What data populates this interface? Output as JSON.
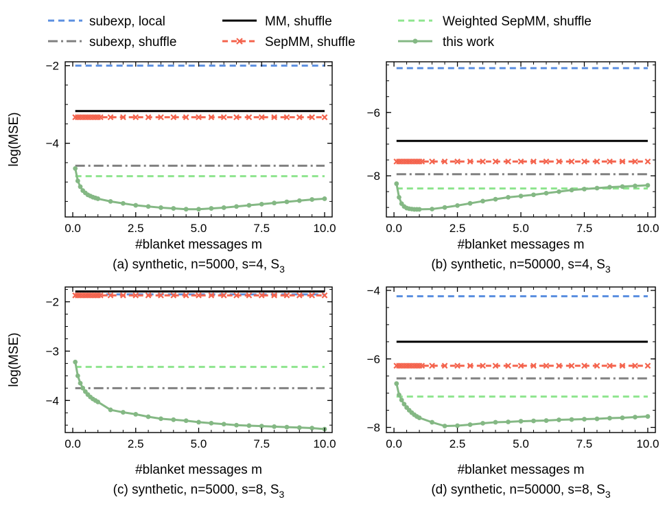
{
  "legend": [
    {
      "key": "subexp_local",
      "label": "subexp, local"
    },
    {
      "key": "subexp_shuffle",
      "label": "subexp, shuffle"
    },
    {
      "key": "mm_shuffle",
      "label": "MM, shuffle"
    },
    {
      "key": "sepmm_shuffle",
      "label": "SepMM, shuffle"
    },
    {
      "key": "weighted_sepmm_shuffle",
      "label": "Weighted SepMM, shuffle"
    },
    {
      "key": "this_work",
      "label": "this work"
    }
  ],
  "series_style": {
    "subexp_local": {
      "color": "#5b8fe0",
      "dash": "9,6",
      "marker": "none"
    },
    "subexp_shuffle": {
      "color": "#808080",
      "dash": "14,5,3,5",
      "marker": "none"
    },
    "mm_shuffle": {
      "color": "#000000",
      "dash": "",
      "marker": "none"
    },
    "sepmm_shuffle": {
      "color": "#f4644e",
      "dash": "8,5",
      "marker": "x"
    },
    "weighted_sepmm_shuffle": {
      "color": "#8ee58e",
      "dash": "9,6",
      "marker": "none"
    },
    "this_work": {
      "color": "#84b884",
      "dash": "",
      "marker": "dot"
    }
  },
  "chart_data": [
    {
      "type": "line",
      "panel": "a",
      "caption": "(a) synthetic, n=5000, s=4, S",
      "caption_sub": "3",
      "xlabel": "#blanket messages m",
      "ylabel": "log(MSE)",
      "xlim": [
        -0.3,
        10.3
      ],
      "ylim": [
        -5.9,
        -1.9
      ],
      "xticks": [
        0.0,
        2.5,
        5.0,
        7.5,
        10.0
      ],
      "xtick_labels": [
        "0.0",
        "2.5",
        "5.0",
        "7.5",
        "10.0"
      ],
      "yticks": [
        -2,
        -4
      ],
      "ytick_labels": [
        "−2",
        "−4"
      ],
      "hlines": {
        "subexp_local": -2.0,
        "mm_shuffle": -3.17,
        "sepmm_shuffle": -3.33,
        "subexp_shuffle": -4.58,
        "weighted_sepmm_shuffle": -4.85
      },
      "sepmm_markers": {
        "dense_from": 0.1,
        "dense_to": 1.1,
        "dense_step": 0.1,
        "sparse_from": 1.5,
        "sparse_to": 10.0,
        "sparse_step": 0.5
      },
      "this_work": {
        "x": [
          0.1,
          0.2,
          0.3,
          0.4,
          0.5,
          0.6,
          0.7,
          0.8,
          0.9,
          1.0,
          1.5,
          2.0,
          2.5,
          3.0,
          3.5,
          4.0,
          4.5,
          5.0,
          5.5,
          6.0,
          6.5,
          7.0,
          7.5,
          8.0,
          8.5,
          9.0,
          9.5,
          10.0
        ],
        "y": [
          -4.65,
          -4.97,
          -5.12,
          -5.22,
          -5.28,
          -5.33,
          -5.36,
          -5.39,
          -5.41,
          -5.43,
          -5.5,
          -5.55,
          -5.6,
          -5.63,
          -5.66,
          -5.68,
          -5.7,
          -5.7,
          -5.68,
          -5.66,
          -5.63,
          -5.6,
          -5.57,
          -5.54,
          -5.51,
          -5.48,
          -5.45,
          -5.43
        ]
      }
    },
    {
      "type": "line",
      "panel": "b",
      "caption": "(b) synthetic, n=50000, s=4, S",
      "caption_sub": "3",
      "xlabel": "#blanket messages m",
      "ylabel": "",
      "xlim": [
        -0.3,
        10.3
      ],
      "ylim": [
        -9.3,
        -4.4
      ],
      "xticks": [
        0.0,
        2.5,
        5.0,
        7.5,
        10.0
      ],
      "xtick_labels": [
        "0.0",
        "2.5",
        "5.0",
        "7.5",
        "10.0"
      ],
      "yticks": [
        -6,
        -8
      ],
      "ytick_labels": [
        "−6",
        "−8"
      ],
      "hlines": {
        "subexp_local": -4.6,
        "mm_shuffle": -6.9,
        "sepmm_shuffle": -7.55,
        "subexp_shuffle": -7.95,
        "weighted_sepmm_shuffle": -8.4
      },
      "sepmm_markers": {
        "dense_from": 0.1,
        "dense_to": 1.1,
        "dense_step": 0.1,
        "sparse_from": 1.5,
        "sparse_to": 10.0,
        "sparse_step": 0.5
      },
      "this_work": {
        "x": [
          0.1,
          0.2,
          0.3,
          0.4,
          0.5,
          0.6,
          0.7,
          0.8,
          0.9,
          1.0,
          1.5,
          2.0,
          2.5,
          3.0,
          3.5,
          4.0,
          4.5,
          5.0,
          5.5,
          6.0,
          6.5,
          7.0,
          7.5,
          8.0,
          8.5,
          9.0,
          9.5,
          10.0
        ],
        "y": [
          -8.25,
          -8.68,
          -8.88,
          -8.97,
          -9.02,
          -9.04,
          -9.05,
          -9.06,
          -9.06,
          -9.06,
          -9.05,
          -9.0,
          -8.94,
          -8.87,
          -8.8,
          -8.74,
          -8.68,
          -8.64,
          -8.6,
          -8.55,
          -8.5,
          -8.45,
          -8.42,
          -8.39,
          -8.36,
          -8.34,
          -8.32,
          -8.3
        ]
      }
    },
    {
      "type": "line",
      "panel": "c",
      "caption": "(c) synthetic, n=5000, s=8, S",
      "caption_sub": "3",
      "xlabel": "#blanket messages m",
      "ylabel": "log(MSE)",
      "xlim": [
        -0.3,
        10.3
      ],
      "ylim": [
        -4.65,
        -1.7
      ],
      "xticks": [
        0.0,
        2.5,
        5.0,
        7.5,
        10.0
      ],
      "xtick_labels": [
        "0.0",
        "2.5",
        "5.0",
        "7.5",
        "10.0"
      ],
      "yticks": [
        -2,
        -3,
        -4
      ],
      "ytick_labels": [
        "−2",
        "−3",
        "−4"
      ],
      "hlines": {
        "mm_shuffle": -1.79,
        "subexp_local": -1.85,
        "sepmm_shuffle": -1.87,
        "weighted_sepmm_shuffle": -3.32,
        "subexp_shuffle": -3.75
      },
      "sepmm_markers": {
        "dense_from": 0.1,
        "dense_to": 1.1,
        "dense_step": 0.1,
        "sparse_from": 1.5,
        "sparse_to": 10.0,
        "sparse_step": 0.5
      },
      "this_work": {
        "x": [
          0.1,
          0.2,
          0.3,
          0.4,
          0.5,
          0.6,
          0.7,
          0.8,
          0.9,
          1.0,
          1.5,
          2.0,
          2.5,
          3.0,
          3.5,
          4.0,
          4.5,
          5.0,
          5.5,
          6.0,
          6.5,
          7.0,
          7.5,
          8.0,
          8.5,
          9.0,
          9.5,
          10.0
        ],
        "y": [
          -3.22,
          -3.5,
          -3.65,
          -3.75,
          -3.82,
          -3.88,
          -3.93,
          -3.97,
          -4.0,
          -4.03,
          -4.19,
          -4.24,
          -4.28,
          -4.33,
          -4.37,
          -4.39,
          -4.41,
          -4.44,
          -4.46,
          -4.48,
          -4.5,
          -4.51,
          -4.52,
          -4.53,
          -4.54,
          -4.55,
          -4.56,
          -4.58
        ]
      }
    },
    {
      "type": "line",
      "panel": "d",
      "caption": "(d) synthetic, n=50000, s=8, S",
      "caption_sub": "3",
      "xlabel": "#blanket messages m",
      "ylabel": "",
      "xlim": [
        -0.3,
        10.3
      ],
      "ylim": [
        -8.15,
        -3.9
      ],
      "xticks": [
        0.0,
        2.5,
        5.0,
        7.5,
        10.0
      ],
      "xtick_labels": [
        "0.0",
        "2.5",
        "5.0",
        "7.5",
        "10.0"
      ],
      "yticks": [
        -4,
        -6,
        -8
      ],
      "ytick_labels": [
        "−4",
        "−6",
        "−8"
      ],
      "hlines": {
        "subexp_local": -4.17,
        "mm_shuffle": -5.5,
        "sepmm_shuffle": -6.2,
        "subexp_shuffle": -6.57,
        "weighted_sepmm_shuffle": -7.1
      },
      "sepmm_markers": {
        "dense_from": 0.1,
        "dense_to": 1.1,
        "dense_step": 0.1,
        "sparse_from": 1.5,
        "sparse_to": 10.0,
        "sparse_step": 0.5
      },
      "this_work": {
        "x": [
          0.1,
          0.2,
          0.3,
          0.4,
          0.5,
          0.6,
          0.7,
          0.8,
          0.9,
          1.0,
          1.5,
          2.0,
          2.5,
          3.0,
          3.5,
          4.0,
          4.5,
          5.0,
          5.5,
          6.0,
          6.5,
          7.0,
          7.5,
          8.0,
          8.5,
          9.0,
          9.5,
          10.0
        ],
        "y": [
          -6.72,
          -7.05,
          -7.2,
          -7.32,
          -7.42,
          -7.5,
          -7.57,
          -7.63,
          -7.68,
          -7.72,
          -7.85,
          -7.96,
          -7.95,
          -7.92,
          -7.88,
          -7.85,
          -7.84,
          -7.82,
          -7.81,
          -7.8,
          -7.78,
          -7.77,
          -7.76,
          -7.75,
          -7.73,
          -7.72,
          -7.7,
          -7.68
        ]
      }
    }
  ]
}
